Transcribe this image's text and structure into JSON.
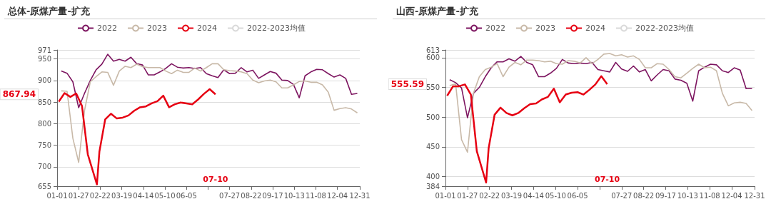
{
  "chart_data": [
    {
      "type": "line",
      "title": "总体-原煤产量-扩充",
      "legend": "top",
      "grid": "y",
      "marker": "none",
      "x": [
        "--01-06",
        "--01-13",
        "--01-20",
        "--01-27",
        "--02-03",
        "--02-10",
        "--02-17",
        "--02-24",
        "--03-02",
        "--03-09",
        "--03-16",
        "--03-23",
        "--03-30",
        "--04-06",
        "--04-13",
        "--04-20",
        "--04-27",
        "--05-04",
        "--05-11",
        "--05-18",
        "--05-25",
        "--06-01",
        "--06-08",
        "--06-15",
        "--06-22",
        "--06-29",
        "--07-06",
        "--07-13",
        "--07-20",
        "--07-27",
        "--08-03",
        "--08-10",
        "--08-17",
        "--08-24",
        "--08-31",
        "--09-07",
        "--09-14",
        "--09-21",
        "--09-28",
        "--10-05",
        "--10-12",
        "--10-19",
        "--10-26",
        "--11-02",
        "--11-09",
        "--11-16",
        "--11-23",
        "--11-30",
        "--12-07",
        "--12-14",
        "--12-21",
        "--12-28"
      ],
      "xlim": [
        "--01-01",
        "--12-31"
      ],
      "xticks": [
        {
          "value": "--01-01",
          "label": "01-01"
        },
        {
          "value": "--01-27",
          "label": "01-27"
        },
        {
          "value": "--02-22",
          "label": "02-22"
        },
        {
          "value": "--03-19",
          "label": "03-19"
        },
        {
          "value": "--04-14",
          "label": "04-14"
        },
        {
          "value": "--05-10",
          "label": "05-10"
        },
        {
          "value": "--06-05",
          "label": "06-05"
        },
        {
          "value": "--07-01",
          "label": null
        },
        {
          "value": "--07-27",
          "label": "07-27"
        },
        {
          "value": "--08-22",
          "label": "08-22"
        },
        {
          "value": "--09-17",
          "label": "09-17"
        },
        {
          "value": "--10-13",
          "label": "10-13"
        },
        {
          "value": "--11-08",
          "label": "11-08"
        },
        {
          "value": "--12-04",
          "label": "12-04"
        },
        {
          "value": "--12-31",
          "label": "12-31"
        }
      ],
      "ylim": [
        655,
        971
      ],
      "yticks": [
        655,
        700,
        750,
        800,
        850,
        900,
        950,
        971
      ],
      "series": [
        {
          "name": "2022",
          "color": "#7d1560",
          "values": [
            922,
            917,
            897,
            837,
            870,
            900,
            925,
            938,
            961,
            945,
            949,
            945,
            954,
            939,
            936,
            913,
            913,
            920,
            928,
            939,
            931,
            929,
            930,
            928,
            930,
            916,
            911,
            907,
            925,
            916,
            917,
            930,
            920,
            924,
            905,
            913,
            921,
            917,
            901,
            900,
            891,
            860,
            911,
            920,
            926,
            925,
            916,
            908,
            913,
            905,
            868,
            870
          ]
        },
        {
          "name": "2023",
          "color": "#c8b9a8",
          "values": [
            876,
            875,
            766,
            710,
            830,
            897,
            909,
            920,
            919,
            889,
            922,
            933,
            930,
            938,
            932,
            930,
            930,
            930,
            922,
            916,
            924,
            919,
            919,
            929,
            922,
            930,
            939,
            939,
            925,
            923,
            922,
            920,
            916,
            901,
            895,
            899,
            901,
            897,
            883,
            883,
            890,
            898,
            899,
            896,
            896,
            890,
            873,
            831,
            835,
            837,
            834,
            825
          ]
        },
        {
          "name": "2024",
          "color": "#e60012",
          "x": [
            "--01-03",
            "--01-10",
            "--01-17",
            "--01-24",
            "--01-31",
            "--02-07",
            "--02-18",
            "--02-21",
            "--02-28",
            "--03-06",
            "--03-13",
            "--03-20",
            "--03-27",
            "--04-03",
            "--04-10",
            "--04-17",
            "--04-24",
            "--05-01",
            "--05-08",
            "--05-15",
            "--05-22",
            "--05-29",
            "--06-05",
            "--06-12",
            "--06-19",
            "--06-26",
            "--07-03",
            "--07-10"
          ],
          "values": [
            851,
            871,
            862,
            870,
            841,
            729,
            659,
            735,
            810,
            823,
            812,
            814,
            819,
            830,
            838,
            840,
            847,
            852,
            865,
            838,
            845,
            849,
            847,
            845,
            856,
            869,
            880,
            867.94
          ]
        },
        {
          "name": "2022-2023均值",
          "color": "#d9d9d9",
          "values": [
            null,
            null,
            null,
            null,
            null,
            null,
            null,
            null,
            null,
            null,
            null,
            null,
            null,
            null,
            null,
            null,
            null,
            null,
            null,
            null,
            null,
            null,
            null,
            null,
            null,
            null,
            null,
            null,
            null,
            null,
            null,
            null,
            null,
            null,
            null,
            null,
            null,
            null,
            null,
            null,
            null,
            null,
            null,
            null,
            null,
            null,
            null,
            null,
            null,
            null,
            null,
            null
          ]
        }
      ],
      "annotations": [
        "867.94",
        "07-10"
      ]
    },
    {
      "type": "line",
      "title": "山西-原煤产量-扩充",
      "legend": "top",
      "grid": "y",
      "marker": "none",
      "x": [
        "--01-06",
        "--01-13",
        "--01-20",
        "--01-27",
        "--02-03",
        "--02-10",
        "--02-17",
        "--02-24",
        "--03-02",
        "--03-09",
        "--03-16",
        "--03-23",
        "--03-30",
        "--04-06",
        "--04-13",
        "--04-20",
        "--04-27",
        "--05-04",
        "--05-11",
        "--05-18",
        "--05-25",
        "--06-01",
        "--06-08",
        "--06-15",
        "--06-22",
        "--06-29",
        "--07-06",
        "--07-13",
        "--07-20",
        "--07-27",
        "--08-03",
        "--08-10",
        "--08-17",
        "--08-24",
        "--08-31",
        "--09-07",
        "--09-14",
        "--09-21",
        "--09-28",
        "--10-05",
        "--10-12",
        "--10-19",
        "--10-26",
        "--11-02",
        "--11-09",
        "--11-16",
        "--11-23",
        "--11-30",
        "--12-07",
        "--12-14",
        "--12-21",
        "--12-28"
      ],
      "xlim": [
        "--01-01",
        "--12-31"
      ],
      "xticks": [
        {
          "value": "--01-01",
          "label": "01-01"
        },
        {
          "value": "--01-27",
          "label": "01-27"
        },
        {
          "value": "--02-22",
          "label": "02-22"
        },
        {
          "value": "--03-19",
          "label": "03-19"
        },
        {
          "value": "--04-14",
          "label": "04-14"
        },
        {
          "value": "--05-10",
          "label": "05-10"
        },
        {
          "value": "--06-05",
          "label": "06-05"
        },
        {
          "value": "--07-01",
          "label": null
        },
        {
          "value": "--07-27",
          "label": "07-27"
        },
        {
          "value": "--08-22",
          "label": "08-22"
        },
        {
          "value": "--09-17",
          "label": "09-17"
        },
        {
          "value": "--10-13",
          "label": "10-13"
        },
        {
          "value": "--11-08",
          "label": "11-08"
        },
        {
          "value": "--12-04",
          "label": "12-04"
        },
        {
          "value": "--12-31",
          "label": "12-31"
        }
      ],
      "ylim": [
        384,
        613
      ],
      "yticks": [
        384,
        400,
        450,
        500,
        550,
        600,
        613
      ],
      "series": [
        {
          "name": "2022",
          "color": "#7d1560",
          "values": [
            563,
            558,
            549,
            499,
            540,
            550,
            568,
            583,
            593,
            593,
            598,
            594,
            602,
            592,
            588,
            568,
            568,
            574,
            582,
            597,
            591,
            590,
            591,
            590,
            592,
            580,
            578,
            576,
            592,
            581,
            577,
            586,
            576,
            580,
            561,
            571,
            580,
            578,
            564,
            562,
            557,
            527,
            578,
            584,
            589,
            588,
            578,
            575,
            583,
            579,
            548,
            548
          ]
        },
        {
          "name": "2023",
          "color": "#c8b9a8",
          "values": [
            553,
            556,
            462,
            441,
            540,
            568,
            580,
            584,
            590,
            568,
            584,
            592,
            588,
            596,
            596,
            595,
            593,
            594,
            590,
            589,
            595,
            594,
            591,
            600,
            590,
            597,
            606,
            607,
            603,
            605,
            601,
            603,
            597,
            583,
            583,
            590,
            589,
            580,
            568,
            566,
            574,
            582,
            589,
            583,
            584,
            578,
            540,
            519,
            524,
            525,
            523,
            511
          ]
        },
        {
          "name": "2024",
          "color": "#e60012",
          "x": [
            "--01-03",
            "--01-10",
            "--01-17",
            "--01-24",
            "--01-31",
            "--02-07",
            "--02-18",
            "--02-21",
            "--02-28",
            "--03-06",
            "--03-13",
            "--03-20",
            "--03-27",
            "--04-03",
            "--04-10",
            "--04-17",
            "--04-24",
            "--05-01",
            "--05-08",
            "--05-15",
            "--05-22",
            "--05-29",
            "--06-05",
            "--06-12",
            "--06-19",
            "--06-26",
            "--07-03",
            "--07-10"
          ],
          "values": [
            536,
            552,
            552,
            555,
            538,
            443,
            390,
            448,
            504,
            516,
            507,
            503,
            507,
            515,
            522,
            523,
            530,
            534,
            548,
            525,
            538,
            541,
            542,
            538,
            546,
            555,
            569,
            555.59
          ]
        },
        {
          "name": "2022-2023均值",
          "color": "#d9d9d9",
          "values": [
            null,
            null,
            null,
            null,
            null,
            null,
            null,
            null,
            null,
            null,
            null,
            null,
            null,
            null,
            null,
            null,
            null,
            null,
            null,
            null,
            null,
            null,
            null,
            null,
            null,
            null,
            null,
            null,
            null,
            null,
            null,
            null,
            null,
            null,
            null,
            null,
            null,
            null,
            null,
            null,
            null,
            null,
            null,
            null,
            null,
            null,
            null,
            null,
            null,
            null,
            null,
            null
          ]
        }
      ],
      "annotations": [
        "555.59",
        "07-10"
      ]
    }
  ]
}
